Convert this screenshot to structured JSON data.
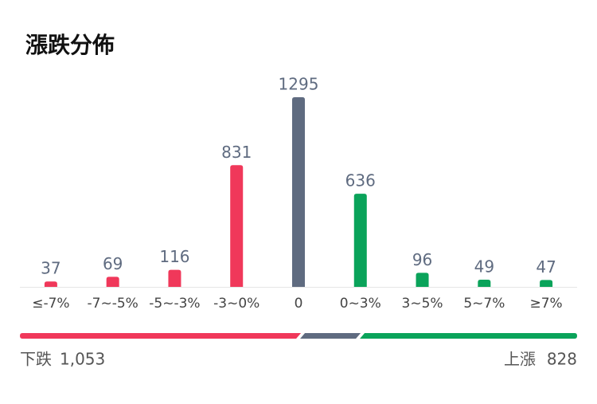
{
  "chart_data": {
    "type": "bar",
    "title": "漲跌分佈",
    "categories": [
      "≤-7%",
      "-7~-5%",
      "-5~-3%",
      "-3~0%",
      "0",
      "0~3%",
      "3~5%",
      "5~7%",
      "≥7%"
    ],
    "values": [
      37,
      69,
      116,
      831,
      1295,
      636,
      96,
      49,
      47
    ],
    "colors": [
      "#f0385a",
      "#f0385a",
      "#f0385a",
      "#f0385a",
      "#5f6b80",
      "#0aa35a",
      "#0aa35a",
      "#0aa35a",
      "#0aa35a"
    ],
    "summary": {
      "down": {
        "name": "下跌",
        "value": 1053,
        "label": "1,053",
        "color": "#f0385a"
      },
      "flat": {
        "color": "#5f6b80"
      },
      "up": {
        "name": "上漲",
        "value": 828,
        "color": "#0aa35a"
      }
    }
  }
}
